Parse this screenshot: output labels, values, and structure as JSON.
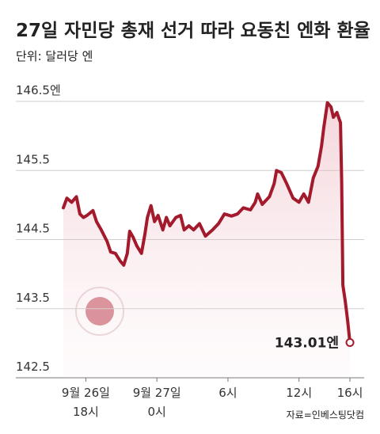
{
  "chart_data": {
    "type": "line",
    "title": "27일 자민당 총재 선거 따라 요동친 엔화 환율",
    "subtitle": "단위: 달러당 엔",
    "source": "자료=인베스팅닷컴",
    "end_label": "143.01엔",
    "color": "#a31a2c",
    "grid": true,
    "xlim": [
      -1.9,
      23.5
    ],
    "xticks": [
      {
        "value": 0,
        "label": "9월 26일\n18시"
      },
      {
        "value": 6,
        "label": "9월 27일\n0시"
      },
      {
        "value": 12,
        "label": "6시"
      },
      {
        "value": 18,
        "label": "12시"
      },
      {
        "value": 22.3,
        "label": "16시"
      }
    ],
    "ylim": [
      142.5,
      146.5
    ],
    "yticks": [
      {
        "value": 146.5,
        "label": "146.5엔"
      },
      145.5,
      144.5,
      143.5,
      142.5
    ],
    "x": [
      -1.9,
      -1.6,
      -1.2,
      -0.8,
      -0.5,
      -0.2,
      0.1,
      0.6,
      0.9,
      1.3,
      1.8,
      2.1,
      2.5,
      2.9,
      3.2,
      3.5,
      3.7,
      4.0,
      4.3,
      4.7,
      5.0,
      5.2,
      5.5,
      5.8,
      6.1,
      6.5,
      6.8,
      7.1,
      7.6,
      8.0,
      8.3,
      8.7,
      9.1,
      9.6,
      10.1,
      10.7,
      11.2,
      11.7,
      12.3,
      12.8,
      13.3,
      13.9,
      14.3,
      14.5,
      14.9,
      15.5,
      15.9,
      16.1,
      16.5,
      16.9,
      17.5,
      18.0,
      18.4,
      18.8,
      19.2,
      19.6,
      19.9,
      20.1,
      20.4,
      20.7,
      20.9,
      21.2,
      21.5,
      21.6,
      21.7,
      21.9,
      22.1,
      22.3
    ],
    "values": [
      144.96,
      145.1,
      145.04,
      145.12,
      144.87,
      144.82,
      144.85,
      144.92,
      144.76,
      144.64,
      144.47,
      144.32,
      144.3,
      144.19,
      144.13,
      144.3,
      144.62,
      144.53,
      144.41,
      144.3,
      144.59,
      144.82,
      144.99,
      144.76,
      144.85,
      144.64,
      144.82,
      144.7,
      144.82,
      144.85,
      144.64,
      144.7,
      144.64,
      144.73,
      144.55,
      144.64,
      144.73,
      144.87,
      144.84,
      144.87,
      144.96,
      144.93,
      145.04,
      145.16,
      145.01,
      145.12,
      145.31,
      145.5,
      145.47,
      145.33,
      145.1,
      145.04,
      145.16,
      145.04,
      145.39,
      145.56,
      145.85,
      146.13,
      146.48,
      146.42,
      146.27,
      146.34,
      146.19,
      145.33,
      143.84,
      143.61,
      143.33,
      143.01
    ]
  }
}
